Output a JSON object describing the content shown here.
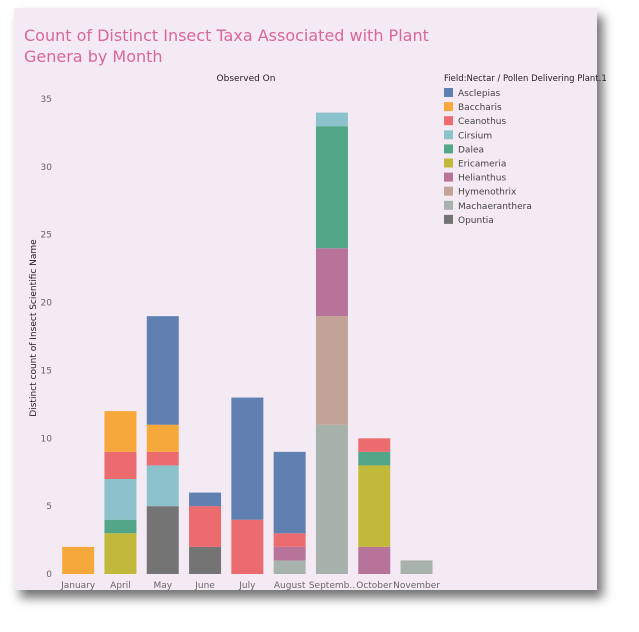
{
  "chart_data": {
    "type": "bar",
    "stacked": true,
    "title": "Count of Distinct Insect Taxa Associated with Plant Genera by Month",
    "header": "Observed On",
    "xlabel": "",
    "ylabel": "Distinct count of Insect Scientific Name",
    "ylim": [
      0,
      35
    ],
    "yticks": [
      0,
      5,
      10,
      15,
      20,
      25,
      30,
      35
    ],
    "categories": [
      "January",
      "April",
      "May",
      "June",
      "July",
      "August",
      "Septemb..",
      "October",
      "November"
    ],
    "legend_title": "Field:Nectar / Pollen Delivering Plant.1",
    "legend_position": "right",
    "series": [
      {
        "name": "Asclepias",
        "color": "#5f80b0",
        "values": [
          0,
          0,
          8,
          1,
          9,
          6,
          0,
          0,
          0
        ]
      },
      {
        "name": "Baccharis",
        "color": "#f6a83a",
        "values": [
          2,
          3,
          2,
          0,
          0,
          0,
          0,
          0,
          0
        ]
      },
      {
        "name": "Ceanothus",
        "color": "#ec6b6f",
        "values": [
          0,
          2,
          1,
          3,
          4,
          1,
          0,
          1,
          0
        ]
      },
      {
        "name": "Cirsium",
        "color": "#8cc2cb",
        "values": [
          0,
          3,
          3,
          0,
          0,
          0,
          1,
          0,
          0
        ]
      },
      {
        "name": "Dalea",
        "color": "#53a688",
        "values": [
          0,
          1,
          0,
          0,
          0,
          0,
          9,
          1,
          0
        ]
      },
      {
        "name": "Ericameria",
        "color": "#c2b93a",
        "values": [
          0,
          3,
          0,
          0,
          0,
          0,
          0,
          6,
          0
        ]
      },
      {
        "name": "Helianthus",
        "color": "#b8739a",
        "values": [
          0,
          0,
          0,
          0,
          0,
          1,
          5,
          2,
          0
        ]
      },
      {
        "name": "Hymenothrix",
        "color": "#c2a397",
        "values": [
          0,
          0,
          0,
          0,
          0,
          0,
          8,
          0,
          0
        ]
      },
      {
        "name": "Machaeranthera",
        "color": "#a8b2ad",
        "values": [
          0,
          0,
          0,
          0,
          0,
          1,
          11,
          0,
          1
        ]
      },
      {
        "name": "Opuntia",
        "color": "#747474",
        "values": [
          0,
          0,
          5,
          2,
          0,
          0,
          0,
          0,
          0
        ]
      }
    ],
    "stack_order": [
      "Opuntia",
      "Machaeranthera",
      "Hymenothrix",
      "Helianthus",
      "Ericameria",
      "Dalea",
      "Cirsium",
      "Ceanothus",
      "Baccharis",
      "Asclepias"
    ]
  }
}
